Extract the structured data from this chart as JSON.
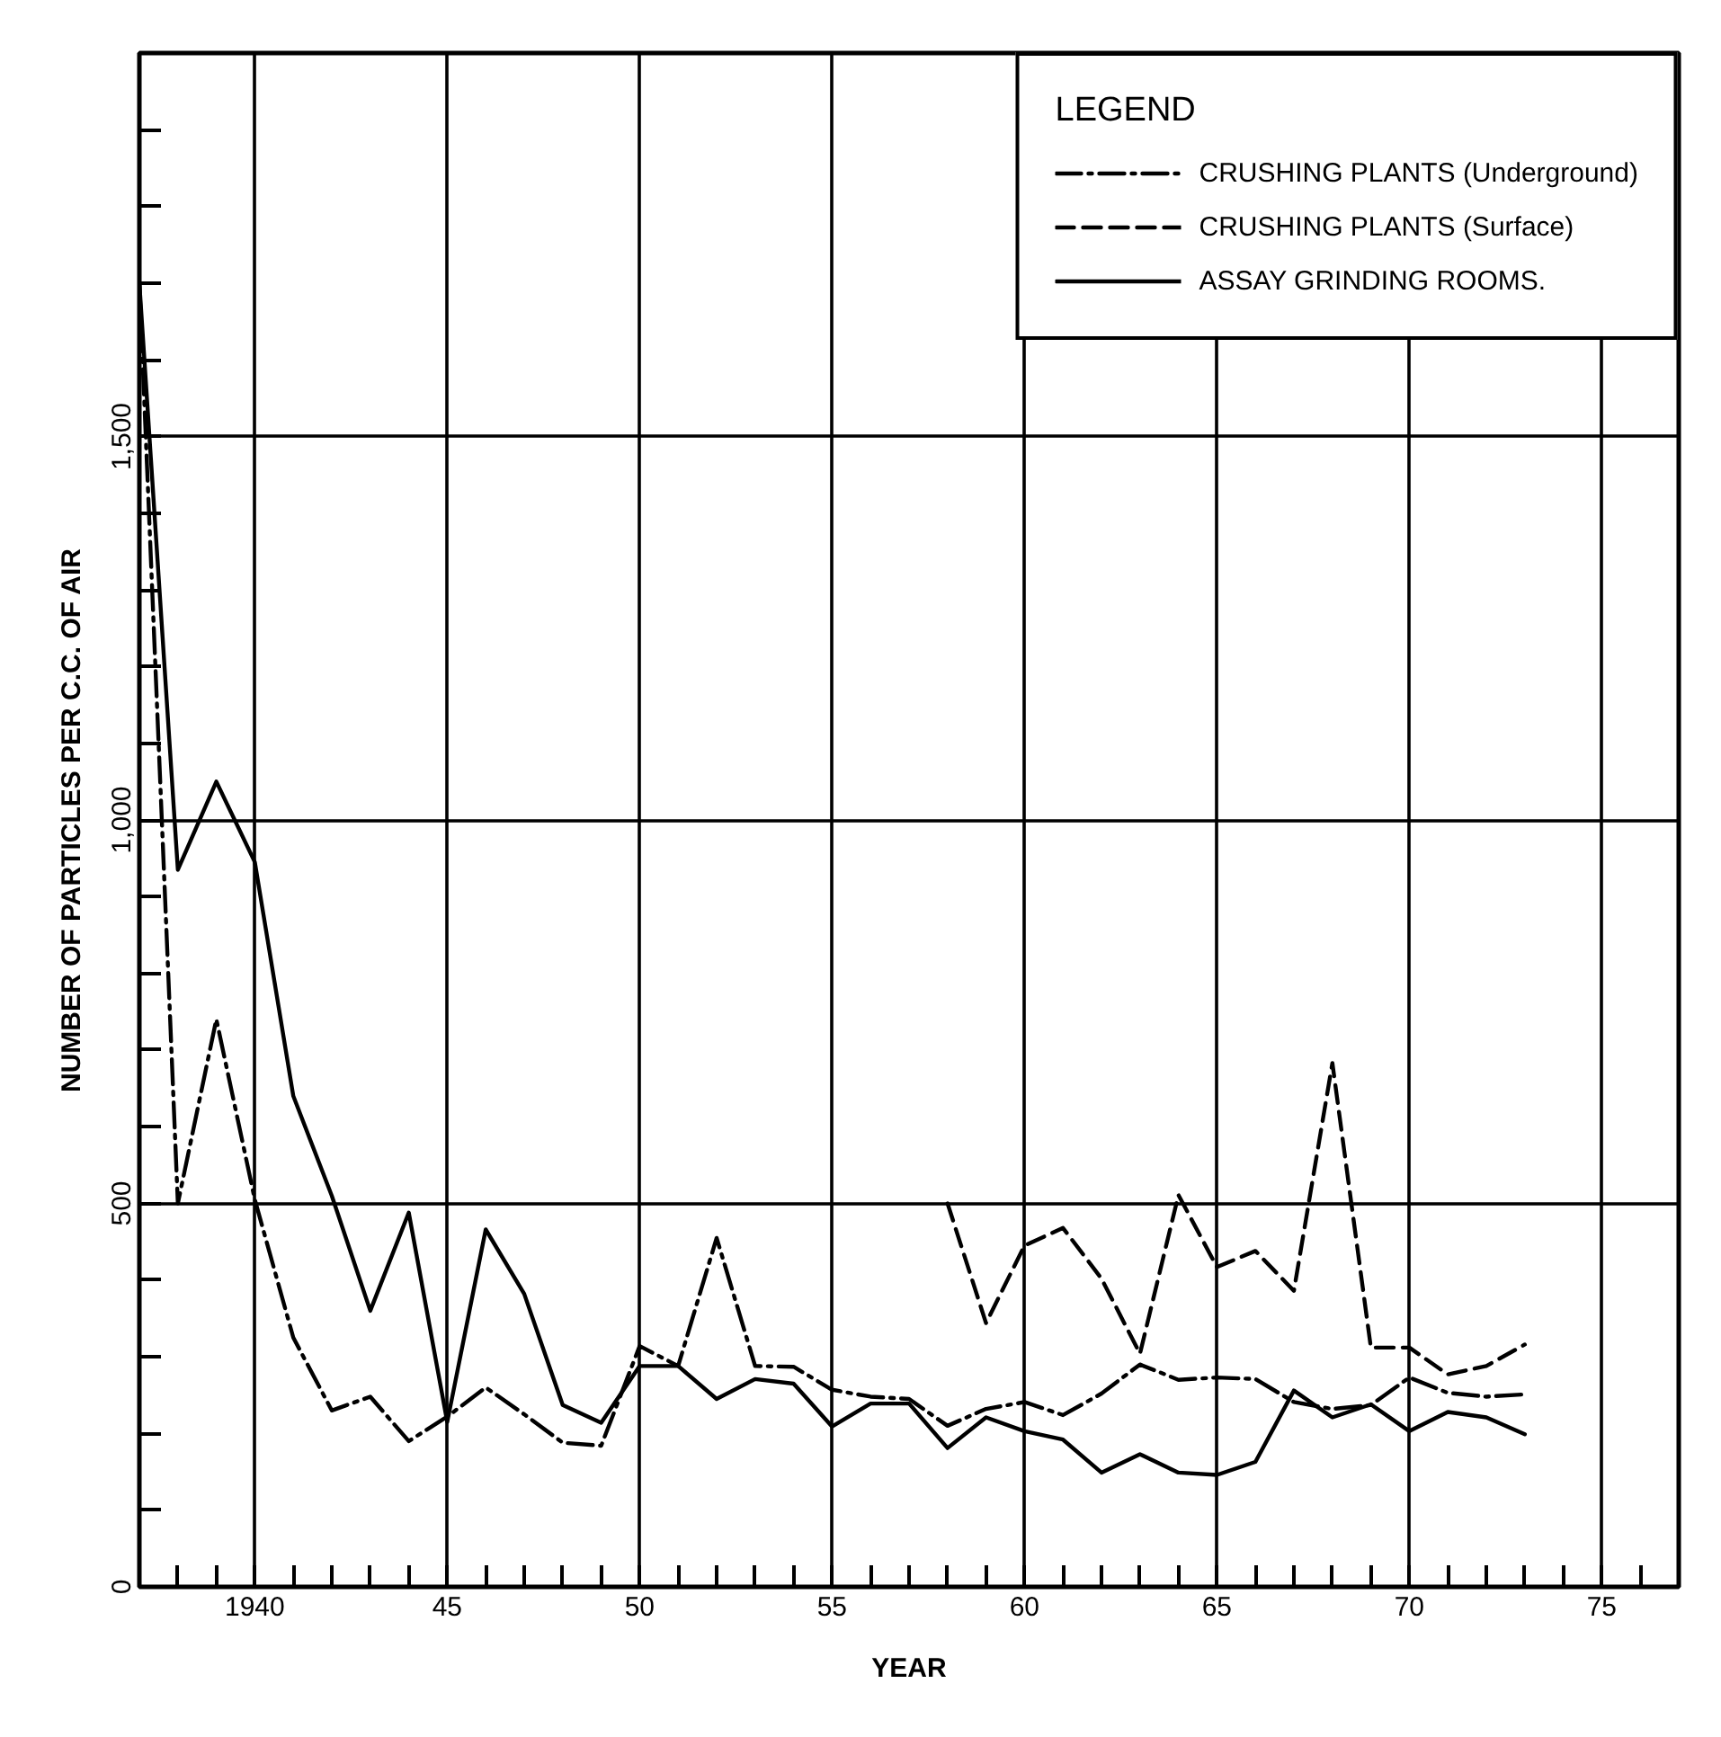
{
  "chart_data": {
    "type": "line",
    "xlabel": "YEAR",
    "ylabel": "NUMBER OF PARTICLES PER C.C. OF AIR",
    "legend_title": "LEGEND",
    "xlim": [
      1937,
      1977
    ],
    "ylim": [
      0,
      2000
    ],
    "xticks": [
      {
        "value": 1938,
        "label": null
      },
      {
        "value": 1939,
        "label": null
      },
      1940,
      {
        "value": 1941,
        "label": null
      },
      {
        "value": 1942,
        "label": null
      },
      {
        "value": 1943,
        "label": null
      },
      {
        "value": 1944,
        "label": null
      },
      {
        "value": 1945,
        "label": "45"
      },
      {
        "value": 1946,
        "label": null
      },
      {
        "value": 1947,
        "label": null
      },
      {
        "value": 1948,
        "label": null
      },
      {
        "value": 1949,
        "label": null
      },
      {
        "value": 1950,
        "label": "50"
      },
      {
        "value": 1951,
        "label": null
      },
      {
        "value": 1952,
        "label": null
      },
      {
        "value": 1953,
        "label": null
      },
      {
        "value": 1954,
        "label": null
      },
      {
        "value": 1955,
        "label": "55"
      },
      {
        "value": 1956,
        "label": null
      },
      {
        "value": 1957,
        "label": null
      },
      {
        "value": 1958,
        "label": null
      },
      {
        "value": 1959,
        "label": null
      },
      {
        "value": 1960,
        "label": "60"
      },
      {
        "value": 1961,
        "label": null
      },
      {
        "value": 1962,
        "label": null
      },
      {
        "value": 1963,
        "label": null
      },
      {
        "value": 1964,
        "label": null
      },
      {
        "value": 1965,
        "label": "65"
      },
      {
        "value": 1966,
        "label": null
      },
      {
        "value": 1967,
        "label": null
      },
      {
        "value": 1968,
        "label": null
      },
      {
        "value": 1969,
        "label": null
      },
      {
        "value": 1970,
        "label": "70"
      },
      {
        "value": 1971,
        "label": null
      },
      {
        "value": 1972,
        "label": null
      },
      {
        "value": 1973,
        "label": null
      },
      {
        "value": 1974,
        "label": null
      },
      {
        "value": 1975,
        "label": "75"
      },
      {
        "value": 1976,
        "label": null
      }
    ],
    "yticks": [
      0,
      {
        "value": 100,
        "label": null
      },
      {
        "value": 200,
        "label": null
      },
      {
        "value": 300,
        "label": null
      },
      {
        "value": 400,
        "label": null
      },
      500,
      {
        "value": 600,
        "label": null
      },
      {
        "value": 700,
        "label": null
      },
      {
        "value": 800,
        "label": null
      },
      {
        "value": 900,
        "label": null
      },
      {
        "value": 1000,
        "label": "1,000"
      },
      {
        "value": 1100,
        "label": null
      },
      {
        "value": 1200,
        "label": null
      },
      {
        "value": 1300,
        "label": null
      },
      {
        "value": 1400,
        "label": null
      },
      {
        "value": 1500,
        "label": "1,500"
      },
      {
        "value": 1600,
        "label": null
      },
      {
        "value": 1700,
        "label": null
      },
      {
        "value": 1800,
        "label": null
      },
      {
        "value": 1900,
        "label": null
      }
    ],
    "grid": true,
    "legend": "top right",
    "series": [
      {
        "name": "CRUSHING PLANTS (Underground)",
        "color": "#000000",
        "line_style": "dashdot",
        "x": [
          1937,
          1938,
          1939,
          1940,
          1941,
          1942,
          1943,
          1944,
          1945,
          1946,
          1947,
          1948,
          1949,
          1950,
          1951,
          1952,
          1953,
          1954,
          1955,
          1956,
          1957,
          1958,
          1959,
          1960,
          1961,
          1962,
          1963,
          1964,
          1965,
          1966,
          1967,
          1968,
          1969,
          1970,
          1971,
          1972,
          1973
        ],
        "values": [
          1700,
          500,
          740,
          505,
          325,
          230,
          248,
          190,
          222,
          260,
          225,
          188,
          184,
          314,
          288,
          455,
          288,
          287,
          257,
          248,
          245,
          210,
          232,
          241,
          224,
          252,
          290,
          270,
          273,
          271,
          241,
          232,
          237,
          273,
          253,
          248,
          251
        ]
      },
      {
        "name": "CRUSHING PLANTS (Surface)",
        "color": "#000000",
        "line_style": "dashed",
        "x": [
          1958,
          1959,
          1960,
          1961,
          1962,
          1963,
          1964,
          1965,
          1966,
          1967,
          1968,
          1969,
          1970,
          1971,
          1972,
          1973
        ],
        "values": [
          500,
          344,
          445,
          468,
          402,
          304,
          511,
          417,
          438,
          386,
          683,
          312,
          312,
          277,
          288,
          316
        ]
      },
      {
        "name": "ASSAY GRINDING ROOMS.",
        "color": "#000000",
        "line_style": "solid",
        "x": [
          1937,
          1938,
          1939,
          1940,
          1941,
          1942,
          1943,
          1944,
          1945,
          1946,
          1947,
          1948,
          1949,
          1950,
          1951,
          1952,
          1953,
          1954,
          1955,
          1956,
          1957,
          1958,
          1959,
          1960,
          1961,
          1962,
          1963,
          1964,
          1965,
          1966,
          1967,
          1968,
          1969,
          1970,
          1971,
          1972,
          1973
        ],
        "values": [
          1700,
          935,
          1050,
          945,
          640,
          510,
          360,
          488,
          215,
          466,
          382,
          237,
          214,
          288,
          288,
          245,
          271,
          265,
          209,
          239,
          239,
          181,
          221,
          203,
          192,
          149,
          173,
          149,
          146,
          163,
          256,
          221,
          238,
          203,
          228,
          221,
          199
        ]
      }
    ]
  }
}
